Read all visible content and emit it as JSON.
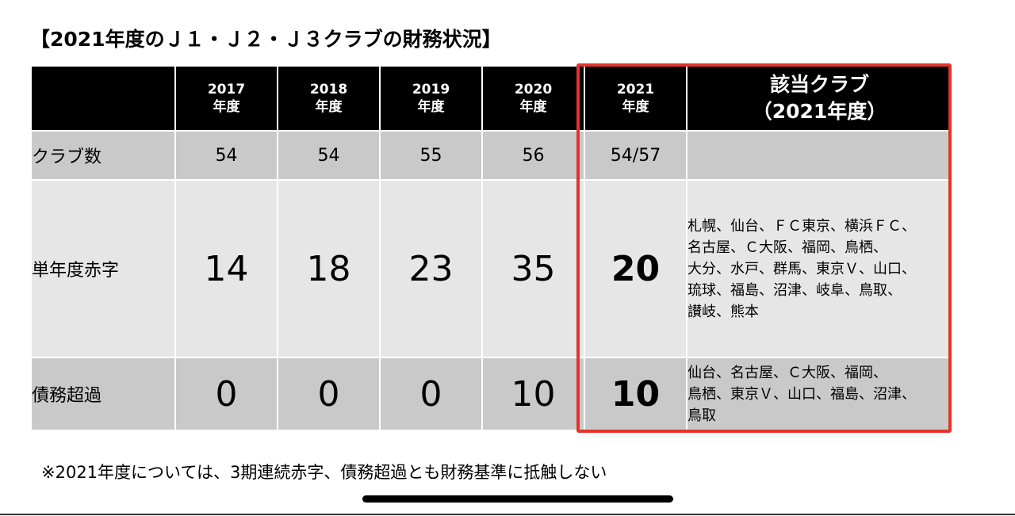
{
  "title": "【2021年度のＪ１・Ｊ２・Ｊ３クラブの財務状況】",
  "table": {
    "headers": [
      {
        "line1": "2017",
        "line2": "年度"
      },
      {
        "line1": "2018",
        "line2": "年度"
      },
      {
        "line1": "2019",
        "line2": "年度"
      },
      {
        "line1": "2020",
        "line2": "年度"
      },
      {
        "line1": "2021",
        "line2": "年度"
      },
      {
        "line1": "該当クラブ",
        "line2": "（2021年度）"
      }
    ],
    "rows": [
      {
        "label": "クラブ数",
        "values": [
          "54",
          "54",
          "55",
          "56",
          "54/57"
        ],
        "clubs": []
      },
      {
        "label": "単年度赤字",
        "values": [
          "14",
          "18",
          "23",
          "35",
          "20"
        ],
        "clubs": [
          "札幌、仙台、ＦＣ東京、横浜ＦＣ、",
          "名古屋、Ｃ大阪、福岡、鳥栖、",
          "大分、水戸、群馬、東京Ｖ、山口、",
          "琉球、福島、沼津、岐阜、鳥取、",
          "讃岐、熊本"
        ]
      },
      {
        "label": "債務超過",
        "values": [
          "0",
          "0",
          "0",
          "10",
          "10"
        ],
        "clubs": [
          "仙台、名古屋、Ｃ大阪、福岡、",
          "鳥栖、東京Ｖ、山口、福島、沼津、",
          "鳥取"
        ]
      }
    ]
  },
  "note": "※2021年度については、3期連続赤字、債務超過とも財務基準に抵触しない",
  "colors": {
    "highlight_border": "#e53329",
    "header_bg": "#000000",
    "row_dark": "#c9c9c9",
    "row_light": "#e6e6e6"
  }
}
